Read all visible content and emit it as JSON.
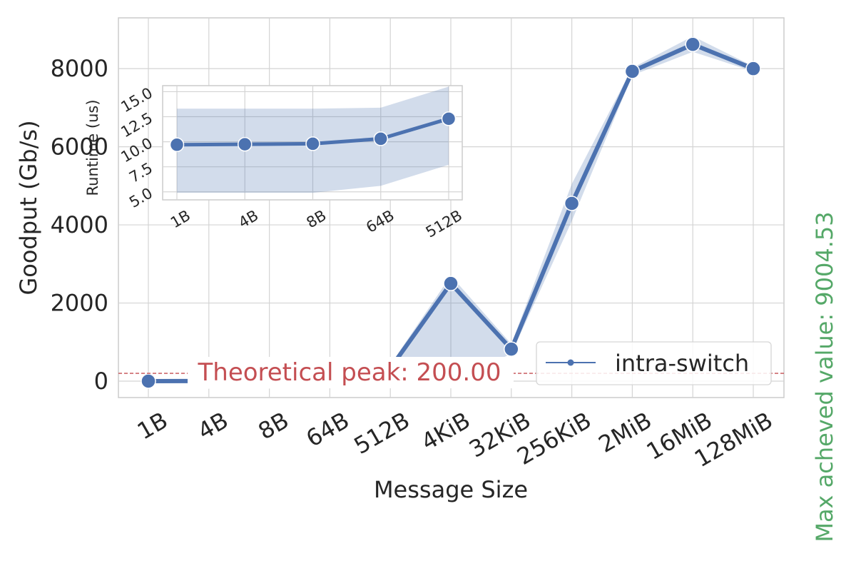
{
  "chart_data": [
    {
      "type": "line",
      "title": "",
      "xlabel": "Message Size",
      "ylabel": "Goodput (Gb/s)",
      "categories": [
        "1B",
        "4B",
        "8B",
        "64B",
        "512B",
        "4KiB",
        "32KiB",
        "256KiB",
        "2MiB",
        "16MiB",
        "128MiB"
      ],
      "ylim": [
        -420,
        9300
      ],
      "yticks": [
        0,
        2000,
        4000,
        6000,
        8000
      ],
      "grid": true,
      "legend": "bottom-right",
      "series": [
        {
          "name": "intra-switch",
          "color": "#4c72b0",
          "values": [
            0.7,
            3,
            6,
            45,
            330,
            2500,
            820,
            4550,
            7930,
            8620,
            8000
          ],
          "lower": [
            0,
            0,
            0,
            0,
            0,
            0,
            700,
            4100,
            7830,
            8430,
            7930
          ],
          "upper": [
            1,
            5,
            9,
            60,
            420,
            2700,
            950,
            5050,
            8020,
            8830,
            8060
          ]
        }
      ],
      "reference_line": {
        "value": 200,
        "label": "Theoretical peak: 200.00",
        "color": "#c44e52"
      },
      "side_note": {
        "text": "Max acheved value: 9004.53",
        "color": "#55a868"
      }
    },
    {
      "type": "line",
      "title": "",
      "xlabel": "",
      "ylabel": "Runtime (us)",
      "categories": [
        "1B",
        "4B",
        "8B",
        "64B",
        "512B"
      ],
      "ylim": [
        4.2,
        15.6
      ],
      "yticks": [
        5.0,
        7.5,
        10.0,
        12.5,
        15.0
      ],
      "ytick_labels": [
        "5.0",
        "7.5",
        "10.0",
        "12.5",
        "15.0"
      ],
      "grid": true,
      "series": [
        {
          "name": "",
          "color": "#4c72b0",
          "values": [
            9.7,
            9.75,
            9.8,
            10.3,
            12.3
          ],
          "lower": [
            4.9,
            4.9,
            4.9,
            5.6,
            7.7
          ],
          "upper": [
            13.3,
            13.3,
            13.3,
            13.4,
            15.5
          ]
        }
      ]
    }
  ]
}
